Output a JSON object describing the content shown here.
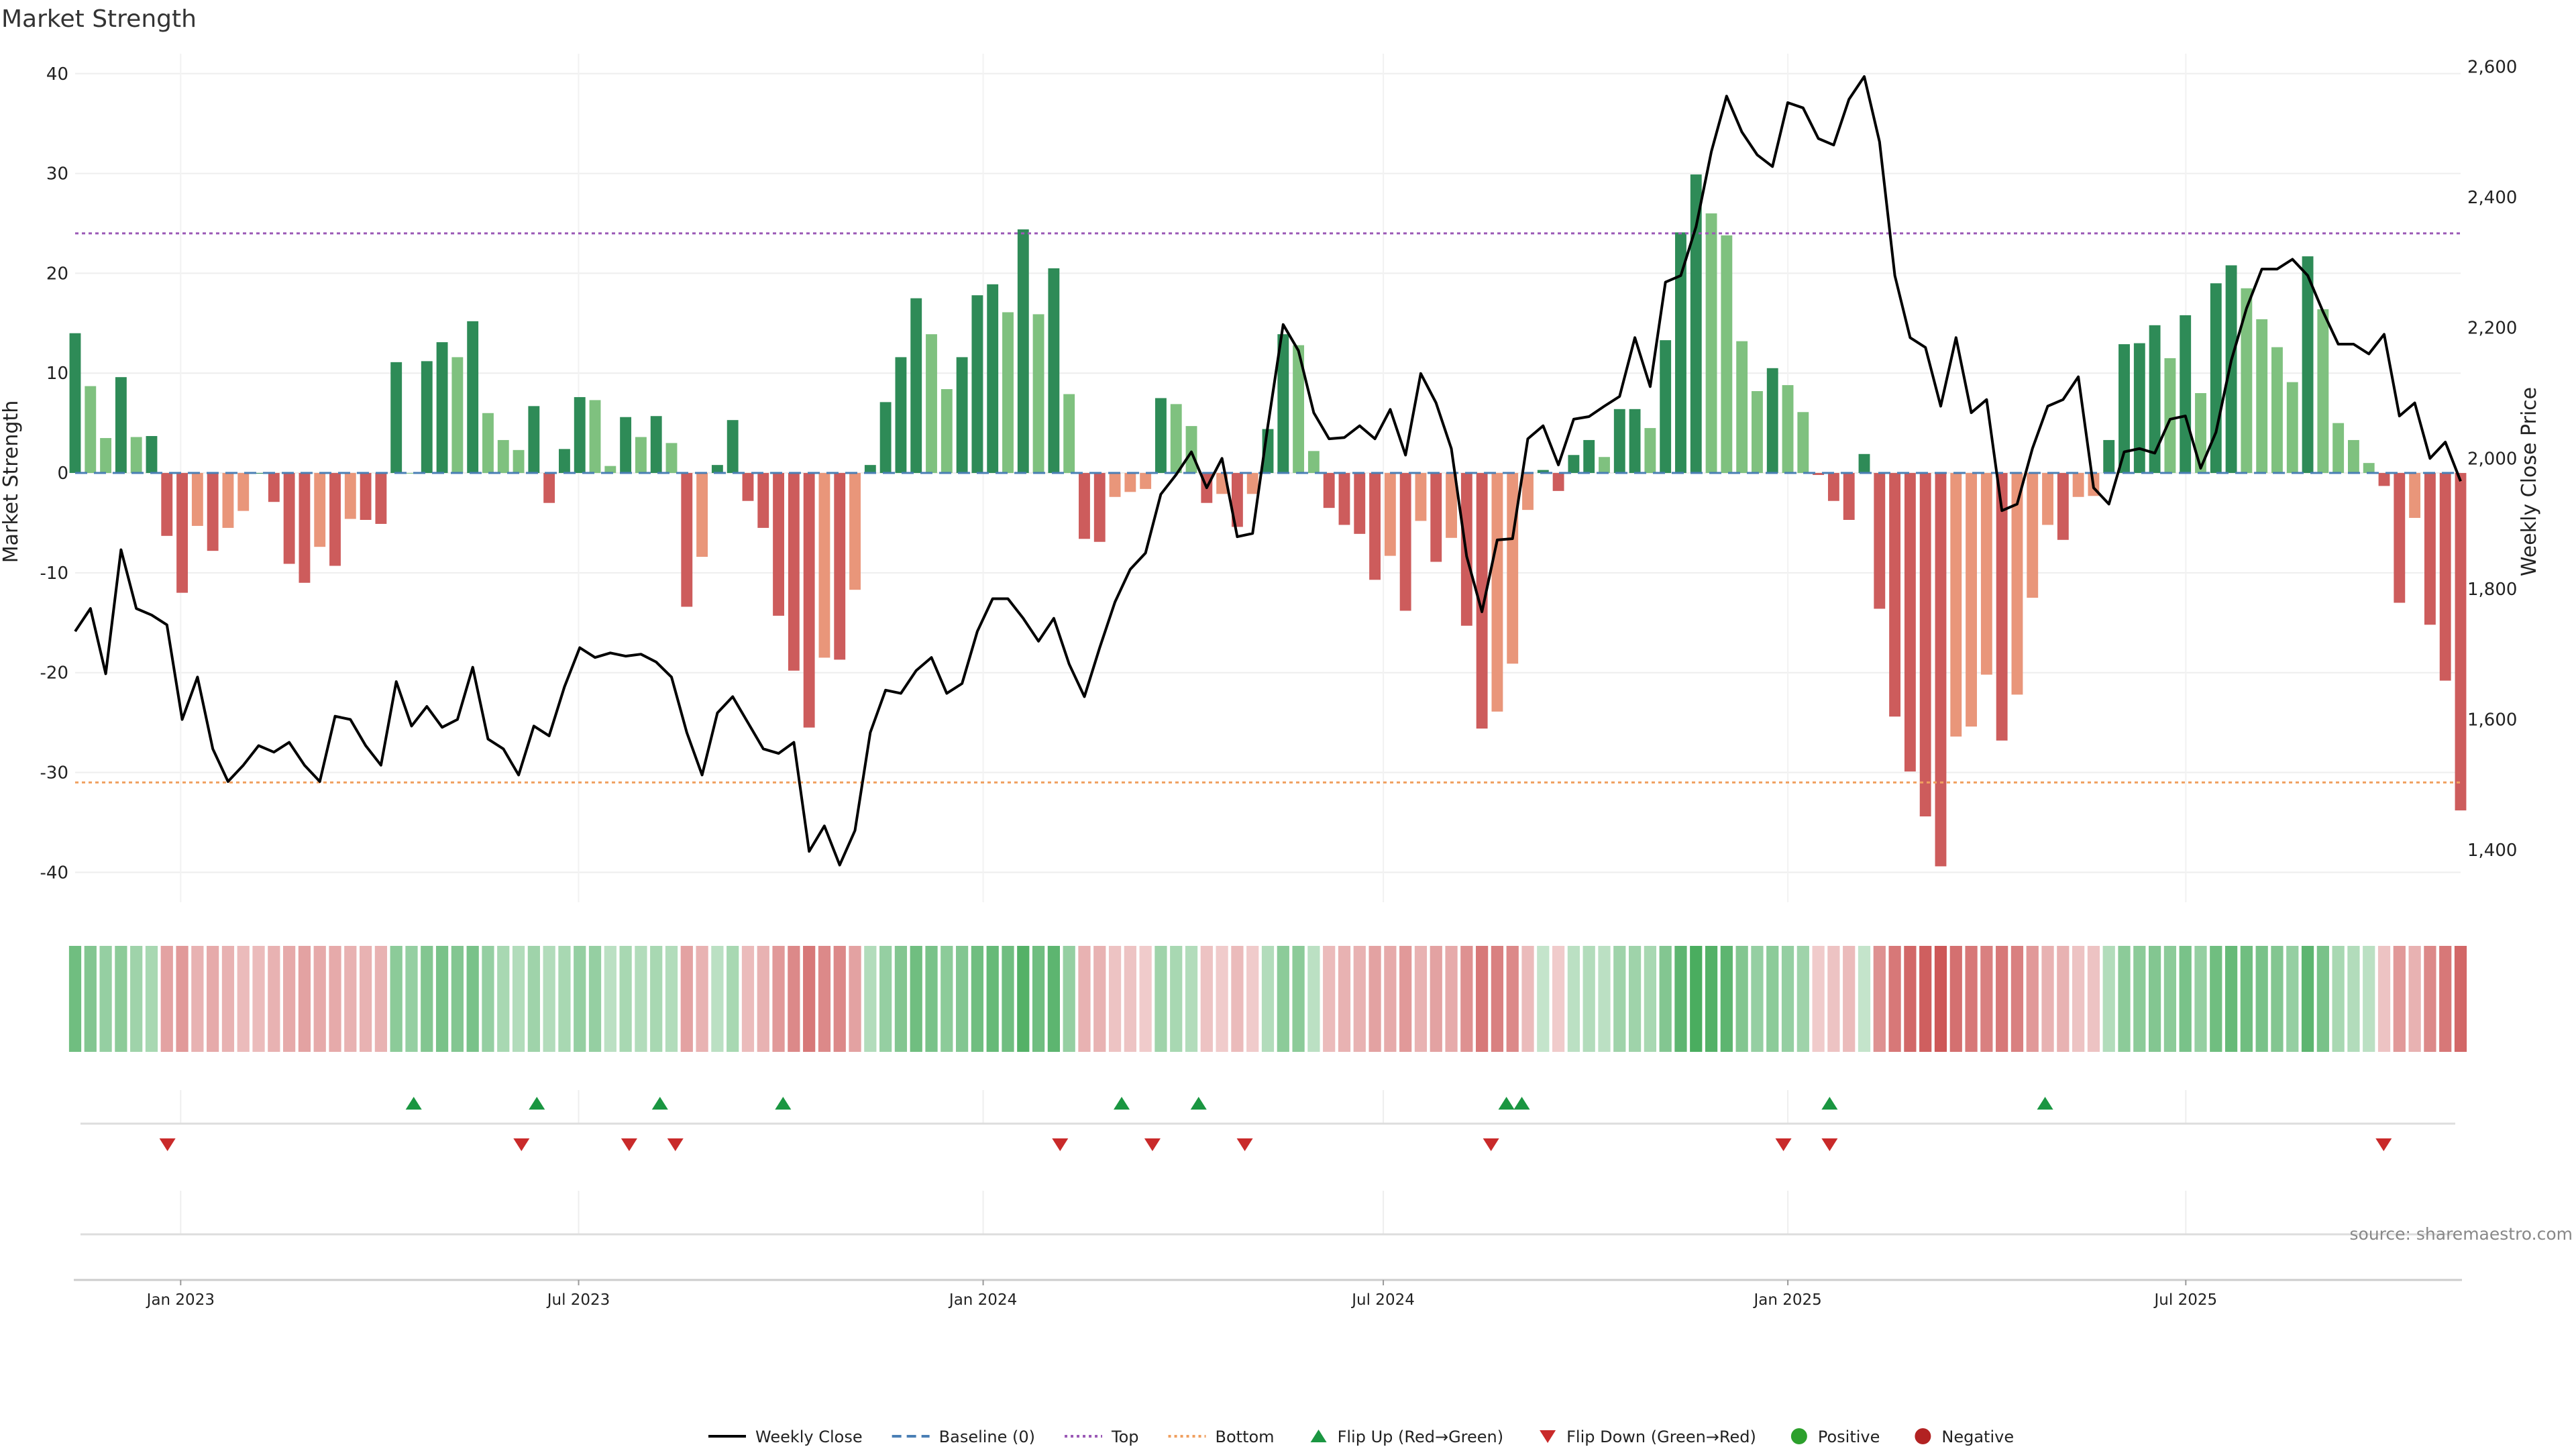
{
  "chart_data": {
    "type": "bar",
    "title": "Market Strength",
    "ylabel": "Market Strength",
    "y2label": "Weekly Close Price",
    "ylim": [
      -43,
      42
    ],
    "y2lim": [
      1320,
      2620
    ],
    "yticks": [
      40,
      30,
      20,
      10,
      0,
      -10,
      -20,
      -30,
      -40
    ],
    "y2ticks": [
      2600,
      2400,
      2200,
      2000,
      1800,
      1600,
      1400
    ],
    "y2tick_labels": [
      "2,600",
      "2,400",
      "2,200",
      "2,000",
      "1,800",
      "1,600",
      "1,400"
    ],
    "x_start": "2022-11-14",
    "x_end": "2025-11-03",
    "xticks": [
      {
        "date": "2023-01-01",
        "label": "Jan 2023"
      },
      {
        "date": "2023-07-01",
        "label": "Jul 2023"
      },
      {
        "date": "2024-01-01",
        "label": "Jan 2024"
      },
      {
        "date": "2024-07-01",
        "label": "Jul 2024"
      },
      {
        "date": "2025-01-01",
        "label": "Jan 2025"
      },
      {
        "date": "2025-07-01",
        "label": "Jul 2025"
      }
    ],
    "top_line": 24,
    "bottom_line": -31,
    "colors": {
      "strong_pos": "#2e8b57",
      "weak_pos": "#7fc17f",
      "strong_neg": "#cd5c5c",
      "weak_neg": "#e9967a",
      "top": "#9b59b6",
      "bottom": "#f0a060",
      "baseline": "#4a7fb5",
      "flip_up": "#1a9641",
      "flip_down": "#c92a2a",
      "positive": "#2ca02c",
      "negative": "#b22222",
      "price": "#000000"
    },
    "strength": [
      14,
      8.7,
      3.5,
      9.6,
      3.6,
      3.7,
      -6.3,
      -12,
      -5.3,
      -7.8,
      -5.5,
      -3.8,
      0,
      -2.9,
      -9.1,
      -11,
      -7.4,
      -9.3,
      -4.6,
      -4.7,
      -5.1,
      11.1,
      0,
      11.2,
      13.1,
      11.6,
      15.2,
      6,
      3.3,
      2.3,
      6.7,
      -3,
      2.4,
      7.6,
      7.3,
      0.7,
      5.6,
      3.6,
      5.7,
      3,
      -13.4,
      -8.4,
      0.8,
      5.3,
      -2.8,
      -5.5,
      -14.3,
      -19.8,
      -25.5,
      -18.5,
      -18.7,
      -11.7,
      0.8,
      7.1,
      11.6,
      17.5,
      13.9,
      8.4,
      11.6,
      17.8,
      18.9,
      16.1,
      24.4,
      15.9,
      20.5,
      7.9,
      -6.6,
      -6.9,
      -2.4,
      -1.9,
      -1.6,
      7.5,
      6.9,
      4.7,
      -3,
      -2.1,
      -5.4,
      -2.1,
      4.4,
      13.9,
      12.8,
      2.2,
      -3.5,
      -5.2,
      -6.1,
      -10.7,
      -8.3,
      -13.8,
      -4.8,
      -8.9,
      -6.5,
      -15.3,
      -25.6,
      -23.9,
      -19.1,
      -3.7,
      0.3,
      -1.8,
      1.8,
      3.3,
      1.6,
      6.4,
      6.4,
      4.5,
      13.3,
      24.1,
      29.9,
      26,
      23.8,
      13.2,
      8.2,
      10.5,
      8.8,
      6.1,
      -0.2,
      -2.8,
      -4.7,
      1.9,
      -13.6,
      -24.4,
      -29.9,
      -34.4,
      -39.4,
      -26.4,
      -25.4,
      -20.2,
      -26.8,
      -22.2,
      -12.5,
      -5.2,
      -6.7,
      -2.4,
      -2.3,
      3.3,
      12.9,
      13,
      14.8,
      11.5,
      15.8,
      8,
      19,
      20.8,
      18.5,
      15.4,
      12.6,
      9.1,
      21.7,
      16.4,
      5,
      3.3,
      1,
      -1.3,
      -13,
      -4.5,
      -15.2,
      -20.8,
      -33.8
    ],
    "price": [
      1735,
      1770,
      1670,
      1860,
      1770,
      1760,
      1745,
      1600,
      1665,
      1555,
      1505,
      1530,
      1560,
      1550,
      1565,
      1530,
      1505,
      1605,
      1600,
      1560,
      1530,
      1658,
      1590,
      1620,
      1588,
      1600,
      1680,
      1570,
      1555,
      1515,
      1590,
      1575,
      1650,
      1710,
      1695,
      1702,
      1697,
      1700,
      1688,
      1665,
      1580,
      1515,
      1610,
      1635,
      1595,
      1555,
      1548,
      1565,
      1398,
      1437,
      1377,
      1430,
      1580,
      1645,
      1640,
      1675,
      1695,
      1640,
      1655,
      1735,
      1785,
      1785,
      1755,
      1720,
      1755,
      1685,
      1635,
      1710,
      1780,
      1830,
      1855,
      1945,
      1975,
      2010,
      1955,
      2000,
      1880,
      1885,
      2050,
      2205,
      2165,
      2070,
      2030,
      2032,
      2050,
      2030,
      2075,
      2005,
      2130,
      2085,
      2015,
      1850,
      1765,
      1875,
      1877,
      2030,
      2050,
      1990,
      2060,
      2064,
      2080,
      2095,
      2185,
      2110,
      2270,
      2280,
      2355,
      2470,
      2555,
      2500,
      2465,
      2447,
      2545,
      2537,
      2490,
      2480,
      2550,
      2585,
      2485,
      2280,
      2185,
      2170,
      2080,
      2185,
      2070,
      2090,
      1920,
      1930,
      2015,
      2080,
      2090,
      2125,
      1955,
      1930,
      2010,
      2015,
      2008,
      2060,
      2065,
      1985,
      2040,
      2150,
      2230,
      2290,
      2290,
      2305,
      2280,
      2225,
      2175,
      2175,
      2160,
      2190,
      2065,
      2085,
      2000,
      2025,
      1965
    ],
    "heat_levels": [
      0.65,
      0.55,
      0.45,
      0.5,
      0.4,
      0.35,
      -0.45,
      -0.5,
      -0.35,
      -0.4,
      -0.35,
      -0.3,
      -0.3,
      -0.35,
      -0.4,
      -0.45,
      -0.4,
      -0.4,
      -0.35,
      -0.35,
      -0.35,
      0.5,
      0.45,
      0.55,
      0.6,
      0.55,
      0.6,
      0.45,
      0.35,
      0.3,
      0.4,
      0.3,
      0.35,
      0.45,
      0.45,
      0.25,
      0.35,
      0.3,
      0.35,
      0.3,
      -0.45,
      -0.35,
      0.25,
      0.35,
      -0.3,
      -0.35,
      -0.5,
      -0.6,
      -0.7,
      -0.6,
      -0.6,
      -0.45,
      0.3,
      0.45,
      0.55,
      0.65,
      0.6,
      0.5,
      0.55,
      0.65,
      0.7,
      0.65,
      0.8,
      0.65,
      0.75,
      0.45,
      -0.35,
      -0.35,
      -0.25,
      -0.25,
      -0.2,
      0.4,
      0.35,
      0.3,
      -0.25,
      -0.2,
      -0.3,
      -0.2,
      0.3,
      0.5,
      0.5,
      0.25,
      -0.3,
      -0.35,
      -0.35,
      -0.45,
      -0.4,
      -0.5,
      -0.35,
      -0.45,
      -0.4,
      -0.55,
      -0.7,
      -0.65,
      -0.6,
      -0.3,
      0.2,
      -0.2,
      0.25,
      0.3,
      0.25,
      0.4,
      0.4,
      0.35,
      0.55,
      0.75,
      0.85,
      0.8,
      0.75,
      0.55,
      0.45,
      0.5,
      0.45,
      0.4,
      -0.2,
      -0.25,
      -0.3,
      0.2,
      -0.55,
      -0.7,
      -0.8,
      -0.85,
      -0.9,
      -0.75,
      -0.7,
      -0.65,
      -0.7,
      -0.65,
      -0.5,
      -0.35,
      -0.35,
      -0.25,
      -0.25,
      0.3,
      0.5,
      0.5,
      0.55,
      0.5,
      0.6,
      0.45,
      0.65,
      0.7,
      0.65,
      0.6,
      0.55,
      0.45,
      0.75,
      0.6,
      0.35,
      0.3,
      0.25,
      -0.25,
      -0.5,
      -0.35,
      -0.6,
      -0.7,
      -0.8
    ],
    "flip_up_dates": [
      "2023-04-17",
      "2023-06-12",
      "2023-08-07",
      "2023-10-02",
      "2024-03-04",
      "2024-04-08",
      "2024-08-26",
      "2024-09-02",
      "2025-01-20",
      "2025-04-28"
    ],
    "flip_down_dates": [
      "2022-12-26",
      "2023-06-05",
      "2023-07-24",
      "2023-08-14",
      "2024-02-05",
      "2024-03-18",
      "2024-04-29",
      "2024-08-19",
      "2024-12-30",
      "2025-01-20",
      "2025-09-29"
    ],
    "legend": [
      {
        "label": "Weekly Close",
        "symbol": "line-solid",
        "color": "#000000"
      },
      {
        "label": "Baseline (0)",
        "symbol": "line-dashed",
        "color": "#4a7fb5"
      },
      {
        "label": "Top",
        "symbol": "line-dotted",
        "color": "#9b59b6"
      },
      {
        "label": "Bottom",
        "symbol": "line-dotted",
        "color": "#f0a060"
      },
      {
        "label": "Flip Up (Red→Green)",
        "symbol": "triangle-up",
        "color": "#1a9641"
      },
      {
        "label": "Flip Down (Green→Red)",
        "symbol": "triangle-down",
        "color": "#c92a2a"
      },
      {
        "label": "Positive",
        "symbol": "circle",
        "color": "#2ca02c"
      },
      {
        "label": "Negative",
        "symbol": "circle",
        "color": "#b22222"
      }
    ],
    "legend_position": "bottom-center",
    "grid": true
  },
  "source": "source: sharemaestro.com"
}
